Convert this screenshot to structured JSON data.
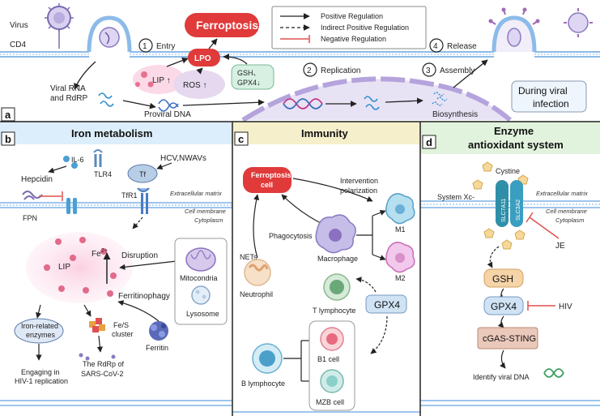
{
  "top": {
    "panel_letter": "a",
    "virus": "Virus",
    "cd4": "CD4",
    "step1": "1",
    "entry": "Entry",
    "ferroptosis": "Ferroptosis",
    "lpo": "LPO",
    "lip_up": "LIP ↑",
    "ros_up": "ROS ↑",
    "gsh_gpx4_line1": "GSH、",
    "gsh_gpx4_line2": "GPX4↓",
    "step2": "2",
    "replication": "Replication",
    "step3": "3",
    "assembly": "Assembly",
    "step4": "4",
    "release": "Release",
    "viral_rna_1": "Viral RNA",
    "viral_rna_2": "and RdRP",
    "proviral_dna": "Proviral DNA",
    "biosynthesis": "Biosynthesis",
    "during_1": "During viral",
    "during_2": "infection"
  },
  "legend": {
    "positive": "Positive Regulation",
    "indirect": "Indirect Positive Regulation",
    "negative": "Negative Regulation"
  },
  "panel_b": {
    "letter": "b",
    "title": "Iron metabolism",
    "hepcidin": "Hepcidin",
    "il6": "IL-6",
    "tlr4": "TLR4",
    "tf": "Tf",
    "hcv": "HCV,NWAVs",
    "tfr1": "TfR1",
    "fpn": "FPN",
    "extracellular": "Extracellular matrix",
    "cell_membrane": "Cell membrane",
    "cytoplasm": "Cytoplasm",
    "lip": "LIP",
    "fe": "Fe",
    "fe_sup": "2+",
    "disruption": "Disruption",
    "mitocondria": "Mitocondria",
    "lysosome": "Lysosome",
    "ferritinophagy": "Ferritinophagy",
    "ferritin": "Ferritin",
    "iron_enz_1": "Iron-related",
    "iron_enz_2": "enzymes",
    "fes_1": "Fe/S",
    "fes_2": "cluster",
    "engaging_1": "Engaging in",
    "engaging_2": "HIV-1 replication",
    "rdrp_1": "The RdRp of",
    "rdrp_2": "SARS-CoV-2"
  },
  "panel_c": {
    "letter": "c",
    "title": "Immunity",
    "ferro_cell_1": "Ferroptosis",
    "ferro_cell_2": "cell",
    "intervention": "Intervention",
    "polarization": "polarization",
    "nets": "NETs",
    "phagocytosis": "Phagocytosis",
    "macrophage": "Macrophage",
    "m1": "M1",
    "m2": "M2",
    "neutrophil": "Neutrophil",
    "t_lymph": "T lymphocyte",
    "gpx4": "GPX4",
    "b_lymph": "B lymphocyte",
    "b1": "B1 cell",
    "mzb": "MZB cell"
  },
  "panel_d": {
    "letter": "d",
    "title_1": "Enzyme",
    "title_2": "antioxidant system",
    "cystine": "Cystine",
    "system_xc": "System Xc-",
    "slc7a11": "SLC7A11",
    "slc3a2": "SLC3A2",
    "extracellular": "Extracellular matrix",
    "cell_membrane": "Cell membrane",
    "cytoplasm": "Cytoplasm",
    "je": "JE",
    "gsh": "GSH",
    "gpx4": "GPX4",
    "hiv": "HIV",
    "cgas": "cGAS-STING",
    "identify": "Identify viral DNA"
  },
  "colors": {
    "ferroptosis_red": "#e03a3a",
    "panel_b_bg": "#e3f0fb",
    "panel_c_bg": "#f7f3d6",
    "panel_d_bg": "#e6f5e2",
    "membrane_blue": "#7fb2e5",
    "gsh_orange": "#f2c48a",
    "gpx4_blue": "#cfe3f5",
    "cgas_brown": "#e8c5b8"
  }
}
